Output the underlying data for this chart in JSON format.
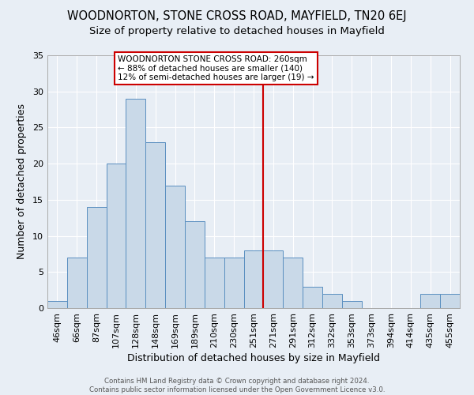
{
  "title": "WOODNORTON, STONE CROSS ROAD, MAYFIELD, TN20 6EJ",
  "subtitle": "Size of property relative to detached houses in Mayfield",
  "xlabel": "Distribution of detached houses by size in Mayfield",
  "ylabel": "Number of detached properties",
  "bar_labels": [
    "46sqm",
    "66sqm",
    "87sqm",
    "107sqm",
    "128sqm",
    "148sqm",
    "169sqm",
    "189sqm",
    "210sqm",
    "230sqm",
    "251sqm",
    "271sqm",
    "291sqm",
    "312sqm",
    "332sqm",
    "353sqm",
    "373sqm",
    "394sqm",
    "414sqm",
    "435sqm",
    "455sqm"
  ],
  "bar_values": [
    1,
    7,
    14,
    20,
    29,
    23,
    17,
    12,
    7,
    7,
    8,
    8,
    7,
    3,
    2,
    1,
    0,
    0,
    0,
    2,
    2
  ],
  "bar_color": "#c9d9e8",
  "bar_edge_color": "#5a8fc0",
  "vline_x": 10.5,
  "vline_color": "#cc0000",
  "annotation_text": "WOODNORTON STONE CROSS ROAD: 260sqm\n← 88% of detached houses are smaller (140)\n12% of semi-detached houses are larger (19) →",
  "annotation_box_color": "#ffffff",
  "annotation_box_edge": "#cc0000",
  "ylim": [
    0,
    35
  ],
  "yticks": [
    0,
    5,
    10,
    15,
    20,
    25,
    30,
    35
  ],
  "background_color": "#e8eef5",
  "grid_color": "#ffffff",
  "title_fontsize": 10.5,
  "subtitle_fontsize": 9.5,
  "axis_label_fontsize": 9,
  "tick_fontsize": 8,
  "footer_text": "Contains HM Land Registry data © Crown copyright and database right 2024.\nContains public sector information licensed under the Open Government Licence v3.0."
}
